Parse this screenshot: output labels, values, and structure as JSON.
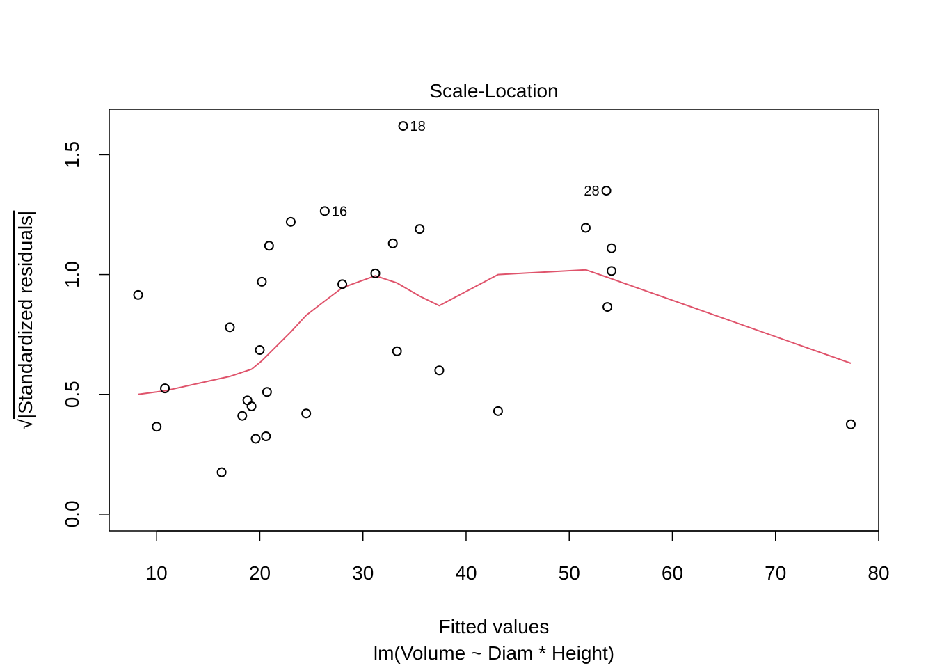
{
  "chart_data": {
    "type": "scatter",
    "title": "Scale-Location",
    "xlabel": "Fitted values",
    "subtitle": "lm(Volume ~ Diam * Height)",
    "ylabel_radical": "√",
    "ylabel": "|Standardized residuals|",
    "xlim": [
      5.4,
      80
    ],
    "ylim": [
      -0.07,
      1.69
    ],
    "x_ticks": [
      10,
      20,
      30,
      40,
      50,
      60,
      70,
      80
    ],
    "x_tick_labels": [
      "10",
      "20",
      "30",
      "40",
      "50",
      "60",
      "70",
      "80"
    ],
    "y_ticks": [
      0.0,
      0.5,
      1.0,
      1.5
    ],
    "y_tick_labels": [
      "0.0",
      "0.5",
      "1.0",
      "1.5"
    ],
    "grid": false,
    "legend": "none",
    "colors": {
      "points": "#000000",
      "smooth": "#DF536B",
      "box": "#000000"
    },
    "points": [
      {
        "x": 8.2,
        "y": 0.915
      },
      {
        "x": 10.0,
        "y": 0.365
      },
      {
        "x": 10.8,
        "y": 0.525
      },
      {
        "x": 16.3,
        "y": 0.175
      },
      {
        "x": 17.1,
        "y": 0.78
      },
      {
        "x": 18.3,
        "y": 0.41
      },
      {
        "x": 18.8,
        "y": 0.475
      },
      {
        "x": 19.2,
        "y": 0.45
      },
      {
        "x": 19.6,
        "y": 0.315
      },
      {
        "x": 20.0,
        "y": 0.685
      },
      {
        "x": 20.2,
        "y": 0.97
      },
      {
        "x": 20.6,
        "y": 0.325
      },
      {
        "x": 20.7,
        "y": 0.51
      },
      {
        "x": 20.9,
        "y": 1.12
      },
      {
        "x": 23.0,
        "y": 1.22
      },
      {
        "x": 24.5,
        "y": 0.42
      },
      {
        "x": 26.3,
        "y": 1.265,
        "label": "16"
      },
      {
        "x": 28.0,
        "y": 0.96
      },
      {
        "x": 31.2,
        "y": 1.005
      },
      {
        "x": 32.9,
        "y": 1.13
      },
      {
        "x": 33.3,
        "y": 0.68
      },
      {
        "x": 33.9,
        "y": 1.62,
        "label": "18"
      },
      {
        "x": 35.5,
        "y": 1.19
      },
      {
        "x": 37.4,
        "y": 0.6
      },
      {
        "x": 43.1,
        "y": 0.43
      },
      {
        "x": 51.6,
        "y": 1.195
      },
      {
        "x": 53.6,
        "y": 1.35,
        "label": "28"
      },
      {
        "x": 53.7,
        "y": 0.865
      },
      {
        "x": 54.1,
        "y": 1.11
      },
      {
        "x": 54.1,
        "y": 1.015
      },
      {
        "x": 77.3,
        "y": 0.375
      }
    ],
    "point_labels": [
      "16",
      "18",
      "28"
    ],
    "smooth_line": [
      {
        "x": 8.2,
        "y": 0.5
      },
      {
        "x": 10.8,
        "y": 0.515
      },
      {
        "x": 17.1,
        "y": 0.575
      },
      {
        "x": 19.2,
        "y": 0.605
      },
      {
        "x": 20.2,
        "y": 0.64
      },
      {
        "x": 23.0,
        "y": 0.76
      },
      {
        "x": 24.5,
        "y": 0.83
      },
      {
        "x": 26.3,
        "y": 0.89
      },
      {
        "x": 28.0,
        "y": 0.945
      },
      {
        "x": 31.2,
        "y": 0.995
      },
      {
        "x": 33.3,
        "y": 0.965
      },
      {
        "x": 35.5,
        "y": 0.91
      },
      {
        "x": 37.4,
        "y": 0.87
      },
      {
        "x": 43.1,
        "y": 1.0
      },
      {
        "x": 51.6,
        "y": 1.02
      },
      {
        "x": 53.6,
        "y": 0.99
      },
      {
        "x": 77.3,
        "y": 0.63
      }
    ]
  }
}
